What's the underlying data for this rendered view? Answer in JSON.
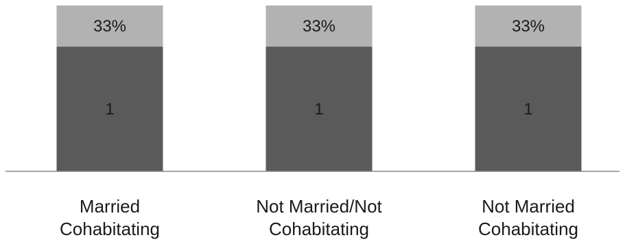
{
  "chart_data": {
    "type": "bar",
    "stacked": true,
    "categories": [
      "Married\nCohabitating",
      "Not Married/Not\nCohabitating",
      "Not Married\nCohabitating"
    ],
    "series": [
      {
        "values": [
          1,
          1,
          1
        ],
        "labels": [
          "1",
          "1",
          "1"
        ],
        "color": "#5a5a5a"
      },
      {
        "values": [
          0.33,
          0.33,
          0.33
        ],
        "labels": [
          "33%",
          "33%",
          "33%"
        ],
        "color": "#b2b2b2"
      }
    ],
    "title": "",
    "xlabel": "",
    "ylabel": "",
    "ylim": [
      0,
      1.33
    ],
    "grid": false,
    "legend": "none",
    "axis_color": "#888888"
  }
}
